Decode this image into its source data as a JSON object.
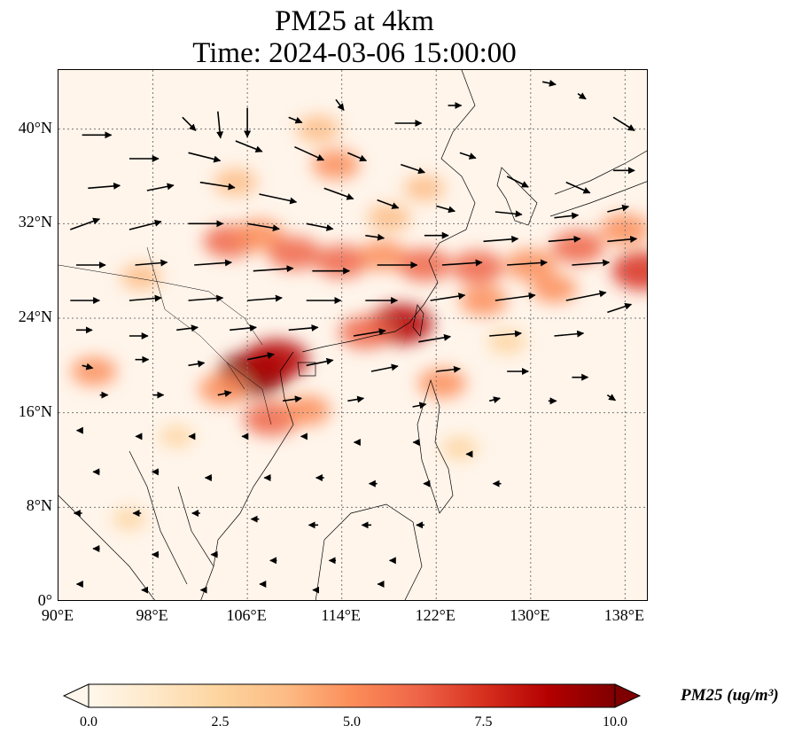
{
  "title": {
    "line1": "PM25 at 4km",
    "line2": "Time: 2024-03-06 15:00:00"
  },
  "map": {
    "projection": "PlateCarree",
    "extent": {
      "lon_min": 90,
      "lon_max": 140,
      "lat_min": 0,
      "lat_max": 45
    },
    "lat_ticks": [
      {
        "value": 0,
        "label": "0°"
      },
      {
        "value": 8,
        "label": "8°N"
      },
      {
        "value": 16,
        "label": "16°N"
      },
      {
        "value": 24,
        "label": "24°N"
      },
      {
        "value": 32,
        "label": "32°N"
      },
      {
        "value": 40,
        "label": "40°N"
      }
    ],
    "lon_ticks": [
      {
        "value": 90,
        "label": "90°E"
      },
      {
        "value": 98,
        "label": "98°E"
      },
      {
        "value": 106,
        "label": "106°E"
      },
      {
        "value": 114,
        "label": "114°E"
      },
      {
        "value": 122,
        "label": "122°E"
      },
      {
        "value": 130,
        "label": "130°E"
      },
      {
        "value": 138,
        "label": "138°E"
      }
    ],
    "gridlines": true,
    "background_color": "#fff5eb",
    "coastline_color": "#000000",
    "plumes": [
      {
        "lon": 106.5,
        "lat": 19.3,
        "intensity": 10.0
      },
      {
        "lon": 108.5,
        "lat": 20.5,
        "intensity": 8.5
      },
      {
        "lon": 104.0,
        "lat": 18.0,
        "intensity": 5.5
      },
      {
        "lon": 108.0,
        "lat": 15.5,
        "intensity": 6.5
      },
      {
        "lon": 111.0,
        "lat": 16.2,
        "intensity": 5.0
      },
      {
        "lon": 119.0,
        "lat": 23.5,
        "intensity": 8.5
      },
      {
        "lon": 116.0,
        "lat": 22.8,
        "intensity": 6.0
      },
      {
        "lon": 122.5,
        "lat": 18.5,
        "intensity": 5.0
      },
      {
        "lon": 104.5,
        "lat": 30.5,
        "intensity": 6.0
      },
      {
        "lon": 107.0,
        "lat": 31.0,
        "intensity": 5.5
      },
      {
        "lon": 110.0,
        "lat": 29.5,
        "intensity": 6.0
      },
      {
        "lon": 114.0,
        "lat": 28.8,
        "intensity": 6.0
      },
      {
        "lon": 117.5,
        "lat": 29.3,
        "intensity": 5.0
      },
      {
        "lon": 121.0,
        "lat": 28.5,
        "intensity": 6.0
      },
      {
        "lon": 125.5,
        "lat": 28.3,
        "intensity": 6.0
      },
      {
        "lon": 130.0,
        "lat": 28.5,
        "intensity": 5.5
      },
      {
        "lon": 134.0,
        "lat": 30.0,
        "intensity": 6.0
      },
      {
        "lon": 138.0,
        "lat": 31.5,
        "intensity": 5.5
      },
      {
        "lon": 139.5,
        "lat": 28.0,
        "intensity": 8.0
      },
      {
        "lon": 126.0,
        "lat": 25.5,
        "intensity": 5.0
      },
      {
        "lon": 132.0,
        "lat": 26.5,
        "intensity": 4.5
      },
      {
        "lon": 113.5,
        "lat": 37.0,
        "intensity": 5.0
      },
      {
        "lon": 112.0,
        "lat": 40.0,
        "intensity": 4.0
      },
      {
        "lon": 105.0,
        "lat": 35.5,
        "intensity": 4.0
      },
      {
        "lon": 97.0,
        "lat": 27.5,
        "intensity": 3.5
      },
      {
        "lon": 93.0,
        "lat": 19.5,
        "intensity": 4.5
      },
      {
        "lon": 118.0,
        "lat": 32.5,
        "intensity": 4.0
      },
      {
        "lon": 121.0,
        "lat": 35.0,
        "intensity": 3.5
      },
      {
        "lon": 128.0,
        "lat": 22.0,
        "intensity": 3.0
      },
      {
        "lon": 124.0,
        "lat": 13.0,
        "intensity": 2.5
      },
      {
        "lon": 100.0,
        "lat": 14.0,
        "intensity": 2.0
      },
      {
        "lon": 96.0,
        "lat": 7.0,
        "intensity": 2.0
      }
    ],
    "wind_vectors": [
      {
        "lon": 100.5,
        "lat": 41.0,
        "u": 10,
        "v": -10
      },
      {
        "lon": 103.5,
        "lat": 41.5,
        "u": 2,
        "v": -20
      },
      {
        "lon": 106.0,
        "lat": 41.8,
        "u": 0,
        "v": -22
      },
      {
        "lon": 109.5,
        "lat": 41.0,
        "u": 10,
        "v": -4
      },
      {
        "lon": 113.5,
        "lat": 42.5,
        "u": 6,
        "v": -8
      },
      {
        "lon": 118.5,
        "lat": 40.5,
        "u": 20,
        "v": 0
      },
      {
        "lon": 123.0,
        "lat": 42.0,
        "u": 10,
        "v": 0
      },
      {
        "lon": 131.0,
        "lat": 44.0,
        "u": 10,
        "v": -2
      },
      {
        "lon": 134.0,
        "lat": 43.0,
        "u": 6,
        "v": -4
      },
      {
        "lon": 137.0,
        "lat": 41.0,
        "u": 16,
        "v": -10
      },
      {
        "lon": 92.0,
        "lat": 39.5,
        "u": 22,
        "v": 0
      },
      {
        "lon": 96.0,
        "lat": 37.5,
        "u": 22,
        "v": 0
      },
      {
        "lon": 101.0,
        "lat": 38.0,
        "u": 24,
        "v": -6
      },
      {
        "lon": 105.0,
        "lat": 39.0,
        "u": 20,
        "v": -8
      },
      {
        "lon": 110.0,
        "lat": 38.5,
        "u": 22,
        "v": -10
      },
      {
        "lon": 114.5,
        "lat": 38.0,
        "u": 14,
        "v": -6
      },
      {
        "lon": 119.0,
        "lat": 37.0,
        "u": 18,
        "v": -6
      },
      {
        "lon": 124.0,
        "lat": 38.0,
        "u": 12,
        "v": -4
      },
      {
        "lon": 128.0,
        "lat": 36.0,
        "u": 16,
        "v": -8
      },
      {
        "lon": 133.0,
        "lat": 35.5,
        "u": 18,
        "v": -8
      },
      {
        "lon": 137.0,
        "lat": 36.5,
        "u": 16,
        "v": 0
      },
      {
        "lon": 92.5,
        "lat": 35.0,
        "u": 24,
        "v": 2
      },
      {
        "lon": 97.5,
        "lat": 34.8,
        "u": 20,
        "v": 4
      },
      {
        "lon": 102.0,
        "lat": 35.5,
        "u": 26,
        "v": -4
      },
      {
        "lon": 107.0,
        "lat": 34.5,
        "u": 28,
        "v": -6
      },
      {
        "lon": 112.5,
        "lat": 35.0,
        "u": 22,
        "v": -8
      },
      {
        "lon": 117.0,
        "lat": 34.0,
        "u": 16,
        "v": -6
      },
      {
        "lon": 122.0,
        "lat": 33.5,
        "u": 14,
        "v": -4
      },
      {
        "lon": 127.0,
        "lat": 33.0,
        "u": 20,
        "v": -2
      },
      {
        "lon": 132.0,
        "lat": 32.5,
        "u": 18,
        "v": 2
      },
      {
        "lon": 136.5,
        "lat": 33.0,
        "u": 16,
        "v": 4
      },
      {
        "lon": 91.0,
        "lat": 31.5,
        "u": 22,
        "v": 8
      },
      {
        "lon": 96.0,
        "lat": 31.5,
        "u": 24,
        "v": 6
      },
      {
        "lon": 101.0,
        "lat": 32.0,
        "u": 26,
        "v": 0
      },
      {
        "lon": 106.0,
        "lat": 32.0,
        "u": 24,
        "v": -4
      },
      {
        "lon": 111.0,
        "lat": 32.0,
        "u": 20,
        "v": -4
      },
      {
        "lon": 116.0,
        "lat": 31.0,
        "u": 14,
        "v": -2
      },
      {
        "lon": 121.0,
        "lat": 31.0,
        "u": 18,
        "v": 0
      },
      {
        "lon": 126.0,
        "lat": 30.5,
        "u": 26,
        "v": 2
      },
      {
        "lon": 131.5,
        "lat": 30.5,
        "u": 24,
        "v": 2
      },
      {
        "lon": 136.5,
        "lat": 30.5,
        "u": 22,
        "v": 2
      },
      {
        "lon": 91.5,
        "lat": 28.5,
        "u": 22,
        "v": 0
      },
      {
        "lon": 96.5,
        "lat": 28.5,
        "u": 24,
        "v": 2
      },
      {
        "lon": 101.5,
        "lat": 28.5,
        "u": 28,
        "v": 2
      },
      {
        "lon": 106.5,
        "lat": 28.0,
        "u": 30,
        "v": 2
      },
      {
        "lon": 111.5,
        "lat": 28.0,
        "u": 28,
        "v": 0
      },
      {
        "lon": 117.0,
        "lat": 28.5,
        "u": 30,
        "v": 0
      },
      {
        "lon": 122.5,
        "lat": 28.5,
        "u": 30,
        "v": 2
      },
      {
        "lon": 128.0,
        "lat": 28.5,
        "u": 30,
        "v": 2
      },
      {
        "lon": 133.5,
        "lat": 28.5,
        "u": 28,
        "v": 2
      },
      {
        "lon": 91.0,
        "lat": 25.5,
        "u": 22,
        "v": 0
      },
      {
        "lon": 96.0,
        "lat": 25.5,
        "u": 24,
        "v": 2
      },
      {
        "lon": 101.0,
        "lat": 25.5,
        "u": 26,
        "v": 2
      },
      {
        "lon": 106.0,
        "lat": 25.5,
        "u": 26,
        "v": 2
      },
      {
        "lon": 111.0,
        "lat": 25.5,
        "u": 26,
        "v": 0
      },
      {
        "lon": 116.0,
        "lat": 25.5,
        "u": 24,
        "v": 0
      },
      {
        "lon": 121.5,
        "lat": 25.5,
        "u": 26,
        "v": 4
      },
      {
        "lon": 127.0,
        "lat": 25.5,
        "u": 30,
        "v": 4
      },
      {
        "lon": 133.0,
        "lat": 25.5,
        "u": 30,
        "v": 6
      },
      {
        "lon": 136.5,
        "lat": 24.5,
        "u": 18,
        "v": 6
      },
      {
        "lon": 91.5,
        "lat": 23.0,
        "u": 12,
        "v": 0
      },
      {
        "lon": 96.0,
        "lat": 22.5,
        "u": 14,
        "v": 0
      },
      {
        "lon": 100.0,
        "lat": 23.0,
        "u": 16,
        "v": 2
      },
      {
        "lon": 104.5,
        "lat": 23.0,
        "u": 20,
        "v": 2
      },
      {
        "lon": 109.5,
        "lat": 23.0,
        "u": 22,
        "v": 2
      },
      {
        "lon": 115.0,
        "lat": 22.5,
        "u": 24,
        "v": 4
      },
      {
        "lon": 120.5,
        "lat": 22.0,
        "u": 24,
        "v": 4
      },
      {
        "lon": 126.5,
        "lat": 22.5,
        "u": 24,
        "v": 2
      },
      {
        "lon": 132.0,
        "lat": 22.5,
        "u": 22,
        "v": 2
      },
      {
        "lon": 92.0,
        "lat": 20.0,
        "u": 8,
        "v": -2
      },
      {
        "lon": 96.5,
        "lat": 20.5,
        "u": 10,
        "v": 0
      },
      {
        "lon": 101.0,
        "lat": 20.0,
        "u": 12,
        "v": 2
      },
      {
        "lon": 106.0,
        "lat": 20.5,
        "u": 20,
        "v": 4
      },
      {
        "lon": 111.0,
        "lat": 20.0,
        "u": 20,
        "v": 4
      },
      {
        "lon": 116.5,
        "lat": 19.5,
        "u": 20,
        "v": 4
      },
      {
        "lon": 122.0,
        "lat": 19.5,
        "u": 18,
        "v": 2
      },
      {
        "lon": 128.0,
        "lat": 19.5,
        "u": 16,
        "v": 0
      },
      {
        "lon": 133.5,
        "lat": 19.0,
        "u": 12,
        "v": 0
      },
      {
        "lon": 93.5,
        "lat": 17.5,
        "u": 6,
        "v": 0
      },
      {
        "lon": 98.0,
        "lat": 17.5,
        "u": 8,
        "v": 0
      },
      {
        "lon": 103.5,
        "lat": 17.5,
        "u": 10,
        "v": 2
      },
      {
        "lon": 109.0,
        "lat": 17.0,
        "u": 14,
        "v": 2
      },
      {
        "lon": 114.5,
        "lat": 17.0,
        "u": 12,
        "v": 2
      },
      {
        "lon": 120.0,
        "lat": 16.5,
        "u": 10,
        "v": 2
      },
      {
        "lon": 126.5,
        "lat": 17.0,
        "u": 8,
        "v": 2
      },
      {
        "lon": 131.5,
        "lat": 17.0,
        "u": 6,
        "v": 0
      },
      {
        "lon": 136.5,
        "lat": 17.5,
        "u": 6,
        "v": -4
      },
      {
        "lon": 92.0,
        "lat": 14.5,
        "u": -4,
        "v": 0
      },
      {
        "lon": 97.0,
        "lat": 14.0,
        "u": -4,
        "v": 0
      },
      {
        "lon": 101.5,
        "lat": 14.0,
        "u": -4,
        "v": 0
      },
      {
        "lon": 106.0,
        "lat": 14.0,
        "u": -4,
        "v": 0
      },
      {
        "lon": 111.0,
        "lat": 14.0,
        "u": -4,
        "v": 0
      },
      {
        "lon": 115.5,
        "lat": 13.5,
        "u": -4,
        "v": 0
      },
      {
        "lon": 120.5,
        "lat": 13.5,
        "u": -4,
        "v": 0
      },
      {
        "lon": 125.0,
        "lat": 12.5,
        "u": -4,
        "v": 0
      },
      {
        "lon": 93.5,
        "lat": 11.0,
        "u": -5,
        "v": 0
      },
      {
        "lon": 98.5,
        "lat": 11.0,
        "u": -5,
        "v": 0
      },
      {
        "lon": 103.0,
        "lat": 10.5,
        "u": -5,
        "v": 0
      },
      {
        "lon": 108.0,
        "lat": 10.5,
        "u": -5,
        "v": 0
      },
      {
        "lon": 112.5,
        "lat": 10.5,
        "u": -6,
        "v": 0
      },
      {
        "lon": 117.0,
        "lat": 10.0,
        "u": -6,
        "v": 0
      },
      {
        "lon": 121.5,
        "lat": 10.0,
        "u": -5,
        "v": 0
      },
      {
        "lon": 127.5,
        "lat": 10.0,
        "u": -6,
        "v": 0
      },
      {
        "lon": 92.0,
        "lat": 7.5,
        "u": -6,
        "v": 0
      },
      {
        "lon": 97.0,
        "lat": 7.5,
        "u": -6,
        "v": 0
      },
      {
        "lon": 102.0,
        "lat": 7.5,
        "u": -6,
        "v": 0
      },
      {
        "lon": 107.0,
        "lat": 7.0,
        "u": -6,
        "v": 0
      },
      {
        "lon": 112.0,
        "lat": 6.5,
        "u": -7,
        "v": 0
      },
      {
        "lon": 116.5,
        "lat": 6.5,
        "u": -7,
        "v": 0
      },
      {
        "lon": 121.0,
        "lat": 6.5,
        "u": -6,
        "v": 0
      },
      {
        "lon": 93.5,
        "lat": 4.5,
        "u": -5,
        "v": 0
      },
      {
        "lon": 98.5,
        "lat": 4.0,
        "u": -5,
        "v": 0
      },
      {
        "lon": 103.5,
        "lat": 4.0,
        "u": -5,
        "v": 0
      },
      {
        "lon": 108.5,
        "lat": 3.5,
        "u": -5,
        "v": 0
      },
      {
        "lon": 113.5,
        "lat": 3.5,
        "u": -5,
        "v": 0
      },
      {
        "lon": 118.5,
        "lat": 3.5,
        "u": -4,
        "v": 0
      },
      {
        "lon": 92.0,
        "lat": 1.5,
        "u": -4,
        "v": 0
      },
      {
        "lon": 97.5,
        "lat": 1.0,
        "u": -4,
        "v": 0
      },
      {
        "lon": 102.5,
        "lat": 1.0,
        "u": -4,
        "v": 0
      },
      {
        "lon": 107.5,
        "lat": 1.5,
        "u": -4,
        "v": 0
      },
      {
        "lon": 112.0,
        "lat": 1.0,
        "u": -4,
        "v": 0
      },
      {
        "lon": 117.5,
        "lat": 1.5,
        "u": -4,
        "v": 0
      }
    ]
  },
  "colorbar": {
    "title": "PM25 (ug/m³)",
    "min": 0.0,
    "max": 10.0,
    "ticks": [
      "0.0",
      "2.5",
      "5.0",
      "7.5",
      "10.0"
    ],
    "colormap": "OrRd",
    "colors": [
      "#fff7ec",
      "#fee8c8",
      "#fdd49e",
      "#fdbb84",
      "#fc8d59",
      "#ef6548",
      "#d7301f",
      "#b30000",
      "#7f0000"
    ],
    "extend": "both"
  }
}
